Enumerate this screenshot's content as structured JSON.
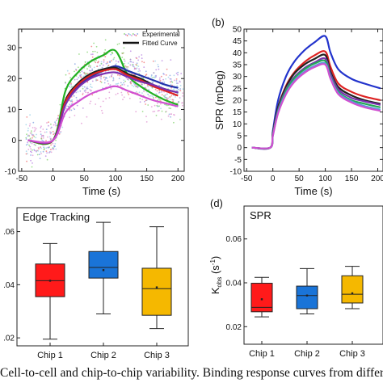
{
  "caption": "Cell-to-cell and chip-to-chip variability.  Binding response curves from differ",
  "chart_data": [
    {
      "id": "a",
      "type": "line",
      "panel_label": "",
      "title": "",
      "xlabel": "Time (s)",
      "ylabel": "",
      "xlim": [
        -55,
        210
      ],
      "ylim": [
        -10,
        36
      ],
      "x_ticks": [
        -50,
        0,
        50,
        100,
        150,
        200
      ],
      "y_ticks": [
        -10,
        0,
        10,
        20,
        30
      ],
      "legend": {
        "placement": "top-right",
        "entries": [
          "Experimental",
          "Fitted Curve"
        ]
      },
      "scatter_colors": [
        "#7fd36b",
        "#b57fe0",
        "#f07070",
        "#7fa0e0",
        "#9ad0e8",
        "#e090d0"
      ],
      "series": [
        {
          "color": "#22b022",
          "x": [
            -40,
            0,
            20,
            40,
            60,
            80,
            100,
            120,
            140,
            160,
            180,
            200
          ],
          "y": [
            0,
            0,
            16,
            22,
            25.5,
            27.5,
            29,
            21,
            17.5,
            15,
            13,
            11.5
          ]
        },
        {
          "color": "#2233aa",
          "x": [
            -40,
            0,
            20,
            40,
            60,
            80,
            100,
            120,
            140,
            160,
            180,
            200
          ],
          "y": [
            0,
            0,
            12,
            17.5,
            20.5,
            22.5,
            24,
            22.5,
            21,
            19.5,
            18,
            17
          ]
        },
        {
          "color": "#222222",
          "x": [
            -40,
            0,
            20,
            40,
            60,
            80,
            100,
            120,
            140,
            160,
            180,
            200
          ],
          "y": [
            0,
            0,
            13,
            18.5,
            21.5,
            23,
            23.5,
            21.5,
            20,
            18,
            16.5,
            15.5
          ]
        },
        {
          "color": "#dd2222",
          "x": [
            -40,
            0,
            20,
            40,
            60,
            80,
            100,
            120,
            140,
            160,
            180,
            200
          ],
          "y": [
            0,
            0,
            12.5,
            18,
            21,
            22.5,
            23,
            21,
            19.5,
            17.5,
            16,
            14.5
          ]
        },
        {
          "color": "#7a30b0",
          "x": [
            -40,
            0,
            20,
            40,
            60,
            80,
            100,
            120,
            140,
            160,
            180,
            200
          ],
          "y": [
            0,
            0,
            11.5,
            17,
            20,
            21.5,
            22,
            20.5,
            19,
            18,
            16.5,
            15.5
          ]
        },
        {
          "color": "#d050d0",
          "x": [
            -40,
            0,
            20,
            40,
            60,
            80,
            100,
            120,
            140,
            160,
            180,
            200
          ],
          "y": [
            0,
            0,
            9,
            12.5,
            15,
            16.5,
            17.5,
            16,
            14.5,
            13,
            12,
            11
          ]
        }
      ]
    },
    {
      "id": "b",
      "type": "line",
      "panel_label": "(b)",
      "title": "",
      "xlabel": "Time (s)",
      "ylabel": "SPR (mDeg)",
      "xlim": [
        -55,
        210
      ],
      "ylim": [
        -10,
        50
      ],
      "x_ticks": [
        -50,
        0,
        50,
        100,
        150,
        200
      ],
      "y_ticks": [
        -10,
        -5,
        0,
        5,
        10,
        15,
        20,
        25,
        30,
        35,
        40,
        45,
        50
      ],
      "series": [
        {
          "color": "#2233cc",
          "x": [
            -40,
            -5,
            0,
            10,
            25,
            40,
            60,
            80,
            100,
            110,
            125,
            150,
            175,
            205
          ],
          "y": [
            0,
            0,
            7,
            20,
            30,
            36,
            41,
            44.5,
            47,
            40,
            33,
            29,
            27,
            25
          ]
        },
        {
          "color": "#dd2222",
          "x": [
            -40,
            -5,
            0,
            10,
            25,
            40,
            60,
            80,
            100,
            110,
            125,
            150,
            175,
            205
          ],
          "y": [
            0,
            0,
            6,
            17,
            26,
            31.5,
            36,
            39,
            40.5,
            34,
            27,
            23.5,
            21.5,
            20
          ]
        },
        {
          "color": "#222222",
          "x": [
            -40,
            -5,
            0,
            10,
            25,
            40,
            60,
            80,
            100,
            110,
            125,
            150,
            175,
            205
          ],
          "y": [
            0,
            0,
            6,
            17,
            25.5,
            31,
            35,
            37.5,
            39,
            32,
            25.5,
            22,
            20,
            18.5
          ]
        },
        {
          "color": "#7a30b0",
          "x": [
            -40,
            -5,
            0,
            10,
            25,
            40,
            60,
            80,
            100,
            110,
            125,
            150,
            175,
            205
          ],
          "y": [
            0,
            0,
            5.5,
            16,
            24.5,
            29.5,
            33.5,
            36,
            37.5,
            31,
            24.5,
            21,
            19.5,
            18
          ]
        },
        {
          "color": "#22aa55",
          "x": [
            -40,
            -5,
            0,
            10,
            25,
            40,
            60,
            80,
            100,
            110,
            125,
            150,
            175,
            205
          ],
          "y": [
            0,
            0,
            5.5,
            15.5,
            24,
            29,
            33,
            35.5,
            36.5,
            30,
            23.5,
            20,
            18.5,
            17
          ]
        },
        {
          "color": "#5a9ad8",
          "x": [
            -40,
            -5,
            0,
            10,
            25,
            40,
            60,
            80,
            100,
            110,
            125,
            150,
            175,
            205
          ],
          "y": [
            0,
            0,
            5,
            15,
            23,
            28,
            32,
            34.5,
            35.5,
            29.5,
            23,
            19.5,
            17.5,
            16
          ]
        },
        {
          "color": "#d050d0",
          "x": [
            -40,
            -5,
            0,
            10,
            25,
            40,
            60,
            80,
            100,
            110,
            125,
            150,
            175,
            205
          ],
          "y": [
            0,
            0,
            5,
            14.5,
            22.5,
            27.5,
            31.5,
            34,
            35,
            29,
            22.5,
            19,
            17,
            15.5
          ]
        }
      ]
    },
    {
      "id": "c",
      "type": "box",
      "panel_label": "",
      "title": "Edge Tracking",
      "xlabel": "",
      "ylabel": "",
      "ylim": [
        0.017,
        0.069
      ],
      "y_ticks": [
        0.02,
        0.04,
        0.06
      ],
      "y_tick_labels": [
        ".02",
        ".04",
        ".06"
      ],
      "categories": [
        "Chip 1",
        "Chip 2",
        "Chip 3"
      ],
      "colors": [
        "#ff1a1a",
        "#1a74d8",
        "#f5b800"
      ],
      "boxes": [
        {
          "min": 0.0195,
          "q1": 0.0355,
          "median": 0.0415,
          "q3": 0.0478,
          "max": 0.0555,
          "mean": 0.0415
        },
        {
          "min": 0.029,
          "q1": 0.0425,
          "median": 0.0465,
          "q3": 0.0525,
          "max": 0.0635,
          "mean": 0.0455
        },
        {
          "min": 0.0235,
          "q1": 0.0285,
          "median": 0.0385,
          "q3": 0.0462,
          "max": 0.0618,
          "mean": 0.039
        }
      ]
    },
    {
      "id": "d",
      "type": "box",
      "panel_label": "(d)",
      "title": "SPR",
      "xlabel": "",
      "ylabel": "K_obs (s^-1)",
      "ylabel_main": "K",
      "ylabel_sub": "obs",
      "ylabel_unit": " (s",
      "ylabel_sup": "-1",
      "ylabel_close": ")",
      "ylim": [
        0.012,
        0.075
      ],
      "y_ticks": [
        0.02,
        0.04,
        0.06
      ],
      "y_tick_labels": [
        "0.02",
        "0.04",
        "0.06"
      ],
      "categories": [
        "Chip 1",
        "Chip 2",
        "Chip 3"
      ],
      "colors": [
        "#ff1a1a",
        "#1a74d8",
        "#f5b800"
      ],
      "boxes": [
        {
          "min": 0.0245,
          "q1": 0.0268,
          "median": 0.0288,
          "q3": 0.0398,
          "max": 0.0425,
          "mean": 0.0325
        },
        {
          "min": 0.0258,
          "q1": 0.0282,
          "median": 0.0342,
          "q3": 0.0385,
          "max": 0.0465,
          "mean": 0.0342
        },
        {
          "min": 0.0282,
          "q1": 0.0308,
          "median": 0.0348,
          "q3": 0.0432,
          "max": 0.0475,
          "mean": 0.0352
        }
      ]
    }
  ]
}
